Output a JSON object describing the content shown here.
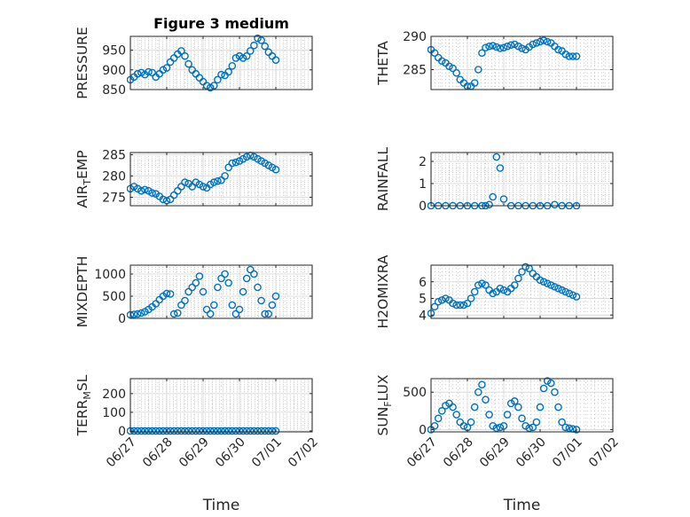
{
  "chart_data": [
    {
      "type": "scatter",
      "title": "Figure 3 medium",
      "ylabel": "PRESSURE",
      "xlabel": "",
      "ylim": [
        850,
        985
      ],
      "yticks": [
        850,
        900,
        950
      ],
      "xlim": [
        0,
        5
      ],
      "xticks": [
        0,
        1,
        2,
        3,
        4,
        5
      ],
      "xtick_labels": [
        "06/27",
        "06/28",
        "06/29",
        "06/30",
        "07/01",
        "07/02"
      ],
      "show_xtick_labels": false,
      "grid": true,
      "minor_grid": true,
      "marker_color": "#0072BD",
      "series": [
        {
          "x": [
            0,
            0.1,
            0.2,
            0.3,
            0.4,
            0.5,
            0.6,
            0.7,
            0.8,
            0.9,
            1.0,
            1.1,
            1.2,
            1.3,
            1.4,
            1.5,
            1.6,
            1.7,
            1.8,
            1.9,
            2.0,
            2.1,
            2.2,
            2.3,
            2.4,
            2.5,
            2.6,
            2.7,
            2.8,
            2.9,
            3.0,
            3.1,
            3.2,
            3.3,
            3.4,
            3.5,
            3.6,
            3.7,
            3.8,
            3.9,
            4.0
          ],
          "y": [
            875,
            882,
            890,
            893,
            888,
            895,
            893,
            882,
            890,
            900,
            905,
            920,
            930,
            940,
            948,
            935,
            915,
            900,
            890,
            880,
            870,
            860,
            855,
            860,
            875,
            888,
            886,
            895,
            910,
            930,
            935,
            930,
            935,
            948,
            962,
            980,
            975,
            960,
            945,
            935,
            925
          ]
        }
      ]
    },
    {
      "type": "scatter",
      "title": "",
      "ylabel": "THETA",
      "xlabel": "",
      "ylim": [
        282,
        290
      ],
      "yticks": [
        285,
        290
      ],
      "xlim": [
        0,
        5
      ],
      "xticks": [
        0,
        1,
        2,
        3,
        4,
        5
      ],
      "xtick_labels": [
        "06/27",
        "06/28",
        "06/29",
        "06/30",
        "07/01",
        "07/02"
      ],
      "show_xtick_labels": false,
      "grid": true,
      "minor_grid": true,
      "marker_color": "#0072BD",
      "series": [
        {
          "x": [
            0,
            0.1,
            0.2,
            0.3,
            0.4,
            0.5,
            0.6,
            0.7,
            0.8,
            0.9,
            1.0,
            1.1,
            1.2,
            1.3,
            1.4,
            1.5,
            1.6,
            1.7,
            1.8,
            1.9,
            2.0,
            2.1,
            2.2,
            2.3,
            2.4,
            2.5,
            2.6,
            2.7,
            2.8,
            2.9,
            3.0,
            3.1,
            3.2,
            3.3,
            3.4,
            3.5,
            3.6,
            3.7,
            3.8,
            3.9,
            4.0
          ],
          "y": [
            288,
            287.5,
            286.8,
            286.3,
            286,
            285.5,
            285.2,
            284.5,
            283.5,
            283,
            282.5,
            282.5,
            283,
            285,
            287.5,
            288.3,
            288.5,
            288.6,
            288.4,
            288.2,
            288.3,
            288.5,
            288.7,
            288.8,
            288.5,
            288.2,
            288,
            288.4,
            288.8,
            289,
            289.2,
            289.4,
            289.2,
            289,
            288.5,
            288,
            287.8,
            287.3,
            287,
            287,
            287
          ]
        }
      ]
    },
    {
      "type": "scatter",
      "title": "",
      "ylabel": "AIR_TEMP",
      "xlabel": "",
      "ylim": [
        273,
        285.5
      ],
      "yticks": [
        275,
        280,
        285
      ],
      "xlim": [
        0,
        5
      ],
      "xticks": [
        0,
        1,
        2,
        3,
        4,
        5
      ],
      "xtick_labels": [
        "06/27",
        "06/28",
        "06/29",
        "06/30",
        "07/01",
        "07/02"
      ],
      "show_xtick_labels": false,
      "grid": true,
      "minor_grid": true,
      "marker_color": "#0072BD",
      "series": [
        {
          "x": [
            0,
            0.1,
            0.2,
            0.3,
            0.4,
            0.5,
            0.6,
            0.7,
            0.8,
            0.9,
            1.0,
            1.1,
            1.2,
            1.3,
            1.4,
            1.5,
            1.6,
            1.7,
            1.8,
            1.9,
            2.0,
            2.1,
            2.2,
            2.3,
            2.4,
            2.5,
            2.6,
            2.7,
            2.8,
            2.9,
            3.0,
            3.1,
            3.2,
            3.3,
            3.4,
            3.5,
            3.6,
            3.7,
            3.8,
            3.9,
            4.0
          ],
          "y": [
            277,
            277.5,
            277,
            276.5,
            276.8,
            276.5,
            276,
            275.8,
            275.2,
            274.5,
            274.2,
            274.5,
            275.5,
            276.5,
            277.5,
            278.5,
            278.2,
            277.5,
            278.5,
            278,
            277.5,
            277.2,
            278,
            278.5,
            278.8,
            279,
            280,
            282,
            283,
            283.2,
            283.5,
            284,
            284.5,
            284.8,
            284.5,
            284,
            283.5,
            283,
            282.5,
            282,
            281.5
          ]
        }
      ]
    },
    {
      "type": "scatter",
      "title": "",
      "ylabel": "RAINFALL",
      "xlabel": "",
      "ylim": [
        0,
        2.4
      ],
      "yticks": [
        0,
        1,
        2
      ],
      "xlim": [
        0,
        5
      ],
      "xticks": [
        0,
        1,
        2,
        3,
        4,
        5
      ],
      "xtick_labels": [
        "06/27",
        "06/28",
        "06/29",
        "06/30",
        "07/01",
        "07/02"
      ],
      "show_xtick_labels": false,
      "grid": true,
      "minor_grid": true,
      "marker_color": "#0072BD",
      "series": [
        {
          "x": [
            0,
            0.2,
            0.4,
            0.6,
            0.8,
            1.0,
            1.2,
            1.4,
            1.5,
            1.6,
            1.7,
            1.8,
            1.9,
            2.0,
            2.2,
            2.4,
            2.6,
            2.8,
            3.0,
            3.2,
            3.4,
            3.6,
            3.8,
            4.0
          ],
          "y": [
            0,
            0,
            0,
            0,
            0,
            0,
            0,
            0,
            0,
            0.05,
            0.4,
            2.2,
            1.7,
            0.3,
            0,
            0,
            0,
            0,
            0,
            0,
            0.05,
            0,
            0,
            0
          ]
        }
      ]
    },
    {
      "type": "scatter",
      "title": "",
      "ylabel": "MIXDEPTH",
      "xlabel": "",
      "ylim": [
        0,
        1200
      ],
      "yticks": [
        0,
        500,
        1000
      ],
      "xlim": [
        0,
        5
      ],
      "xticks": [
        0,
        1,
        2,
        3,
        4,
        5
      ],
      "xtick_labels": [
        "06/27",
        "06/28",
        "06/29",
        "06/30",
        "07/01",
        "07/02"
      ],
      "show_xtick_labels": false,
      "grid": true,
      "minor_grid": true,
      "marker_color": "#0072BD",
      "series": [
        {
          "x": [
            0,
            0.1,
            0.2,
            0.3,
            0.4,
            0.5,
            0.6,
            0.7,
            0.8,
            0.9,
            1.0,
            1.1,
            1.2,
            1.3,
            1.4,
            1.5,
            1.6,
            1.7,
            1.8,
            1.9,
            2.0,
            2.1,
            2.2,
            2.3,
            2.4,
            2.5,
            2.6,
            2.7,
            2.8,
            2.9,
            3.0,
            3.1,
            3.2,
            3.3,
            3.4,
            3.5,
            3.6,
            3.7,
            3.8,
            3.9,
            4.0
          ],
          "y": [
            80,
            90,
            100,
            120,
            150,
            200,
            260,
            330,
            420,
            500,
            560,
            550,
            100,
            120,
            300,
            400,
            600,
            700,
            800,
            950,
            600,
            200,
            100,
            300,
            700,
            900,
            1000,
            800,
            300,
            100,
            200,
            600,
            900,
            1100,
            1000,
            700,
            400,
            100,
            100,
            300,
            500
          ]
        }
      ]
    },
    {
      "type": "scatter",
      "title": "",
      "ylabel": "H2OMIXRA",
      "xlabel": "",
      "ylim": [
        3.8,
        7
      ],
      "yticks": [
        4,
        5,
        6
      ],
      "xlim": [
        0,
        5
      ],
      "xticks": [
        0,
        1,
        2,
        3,
        4,
        5
      ],
      "xtick_labels": [
        "06/27",
        "06/28",
        "06/29",
        "06/30",
        "07/01",
        "07/02"
      ],
      "show_xtick_labels": false,
      "grid": true,
      "minor_grid": true,
      "marker_color": "#0072BD",
      "series": [
        {
          "x": [
            0,
            0.1,
            0.2,
            0.3,
            0.4,
            0.5,
            0.6,
            0.7,
            0.8,
            0.9,
            1.0,
            1.1,
            1.2,
            1.3,
            1.4,
            1.5,
            1.6,
            1.7,
            1.8,
            1.9,
            2.0,
            2.1,
            2.2,
            2.3,
            2.4,
            2.5,
            2.6,
            2.7,
            2.8,
            2.9,
            3.0,
            3.1,
            3.2,
            3.3,
            3.4,
            3.5,
            3.6,
            3.7,
            3.8,
            3.9,
            4.0
          ],
          "y": [
            4.1,
            4.5,
            4.8,
            4.9,
            5.0,
            4.9,
            4.7,
            4.6,
            4.6,
            4.6,
            4.7,
            5.0,
            5.4,
            5.8,
            5.9,
            5.8,
            5.5,
            5.3,
            5.4,
            5.6,
            5.5,
            5.4,
            5.6,
            5.8,
            6.2,
            6.6,
            6.9,
            6.8,
            6.5,
            6.3,
            6.1,
            6.0,
            5.9,
            5.8,
            5.7,
            5.6,
            5.5,
            5.4,
            5.3,
            5.2,
            5.1
          ]
        }
      ]
    },
    {
      "type": "scatter",
      "title": "",
      "ylabel": "TERR_MSL",
      "xlabel": "Time",
      "ylim": [
        -5,
        280
      ],
      "yticks": [
        0,
        100,
        200
      ],
      "xlim": [
        0,
        5
      ],
      "xticks": [
        0,
        1,
        2,
        3,
        4,
        5
      ],
      "xtick_labels": [
        "06/27",
        "06/28",
        "06/29",
        "06/30",
        "07/01",
        "07/02"
      ],
      "show_xtick_labels": true,
      "grid": true,
      "minor_grid": true,
      "marker_color": "#0072BD",
      "series": [
        {
          "x": [
            0,
            0.1,
            0.2,
            0.3,
            0.4,
            0.5,
            0.6,
            0.7,
            0.8,
            0.9,
            1.0,
            1.1,
            1.2,
            1.3,
            1.4,
            1.5,
            1.6,
            1.7,
            1.8,
            1.9,
            2.0,
            2.1,
            2.2,
            2.3,
            2.4,
            2.5,
            2.6,
            2.7,
            2.8,
            2.9,
            3.0,
            3.1,
            3.2,
            3.3,
            3.4,
            3.5,
            3.6,
            3.7,
            3.8,
            3.9,
            4.0
          ],
          "y": [
            0,
            0,
            0,
            0,
            0,
            0,
            0,
            0,
            0,
            0,
            0,
            0,
            0,
            0,
            0,
            0,
            0,
            0,
            0,
            0,
            0,
            0,
            0,
            0,
            0,
            0,
            0,
            0,
            0,
            0,
            0,
            0,
            0,
            0,
            0,
            0,
            0,
            0,
            0,
            0,
            0
          ]
        }
      ]
    },
    {
      "type": "scatter",
      "title": "",
      "ylabel": "SUN_FLUX",
      "xlabel": "Time",
      "ylim": [
        -30,
        680
      ],
      "yticks": [
        0,
        500
      ],
      "xlim": [
        0,
        5
      ],
      "xticks": [
        0,
        1,
        2,
        3,
        4,
        5
      ],
      "xtick_labels": [
        "06/27",
        "06/28",
        "06/29",
        "06/30",
        "07/01",
        "07/02"
      ],
      "show_xtick_labels": true,
      "grid": true,
      "minor_grid": true,
      "marker_color": "#0072BD",
      "series": [
        {
          "x": [
            0,
            0.1,
            0.2,
            0.3,
            0.4,
            0.5,
            0.6,
            0.7,
            0.8,
            0.9,
            1.0,
            1.1,
            1.2,
            1.3,
            1.4,
            1.5,
            1.6,
            1.7,
            1.8,
            1.9,
            2.0,
            2.1,
            2.2,
            2.3,
            2.4,
            2.5,
            2.6,
            2.7,
            2.8,
            2.9,
            3.0,
            3.1,
            3.2,
            3.3,
            3.4,
            3.5,
            3.6,
            3.7,
            3.8,
            3.9,
            4.0
          ],
          "y": [
            0,
            50,
            150,
            250,
            320,
            350,
            300,
            200,
            100,
            50,
            30,
            100,
            300,
            500,
            600,
            400,
            200,
            50,
            20,
            30,
            50,
            200,
            350,
            380,
            300,
            150,
            50,
            20,
            30,
            100,
            300,
            550,
            650,
            620,
            500,
            300,
            100,
            30,
            20,
            10,
            0
          ]
        }
      ]
    }
  ]
}
